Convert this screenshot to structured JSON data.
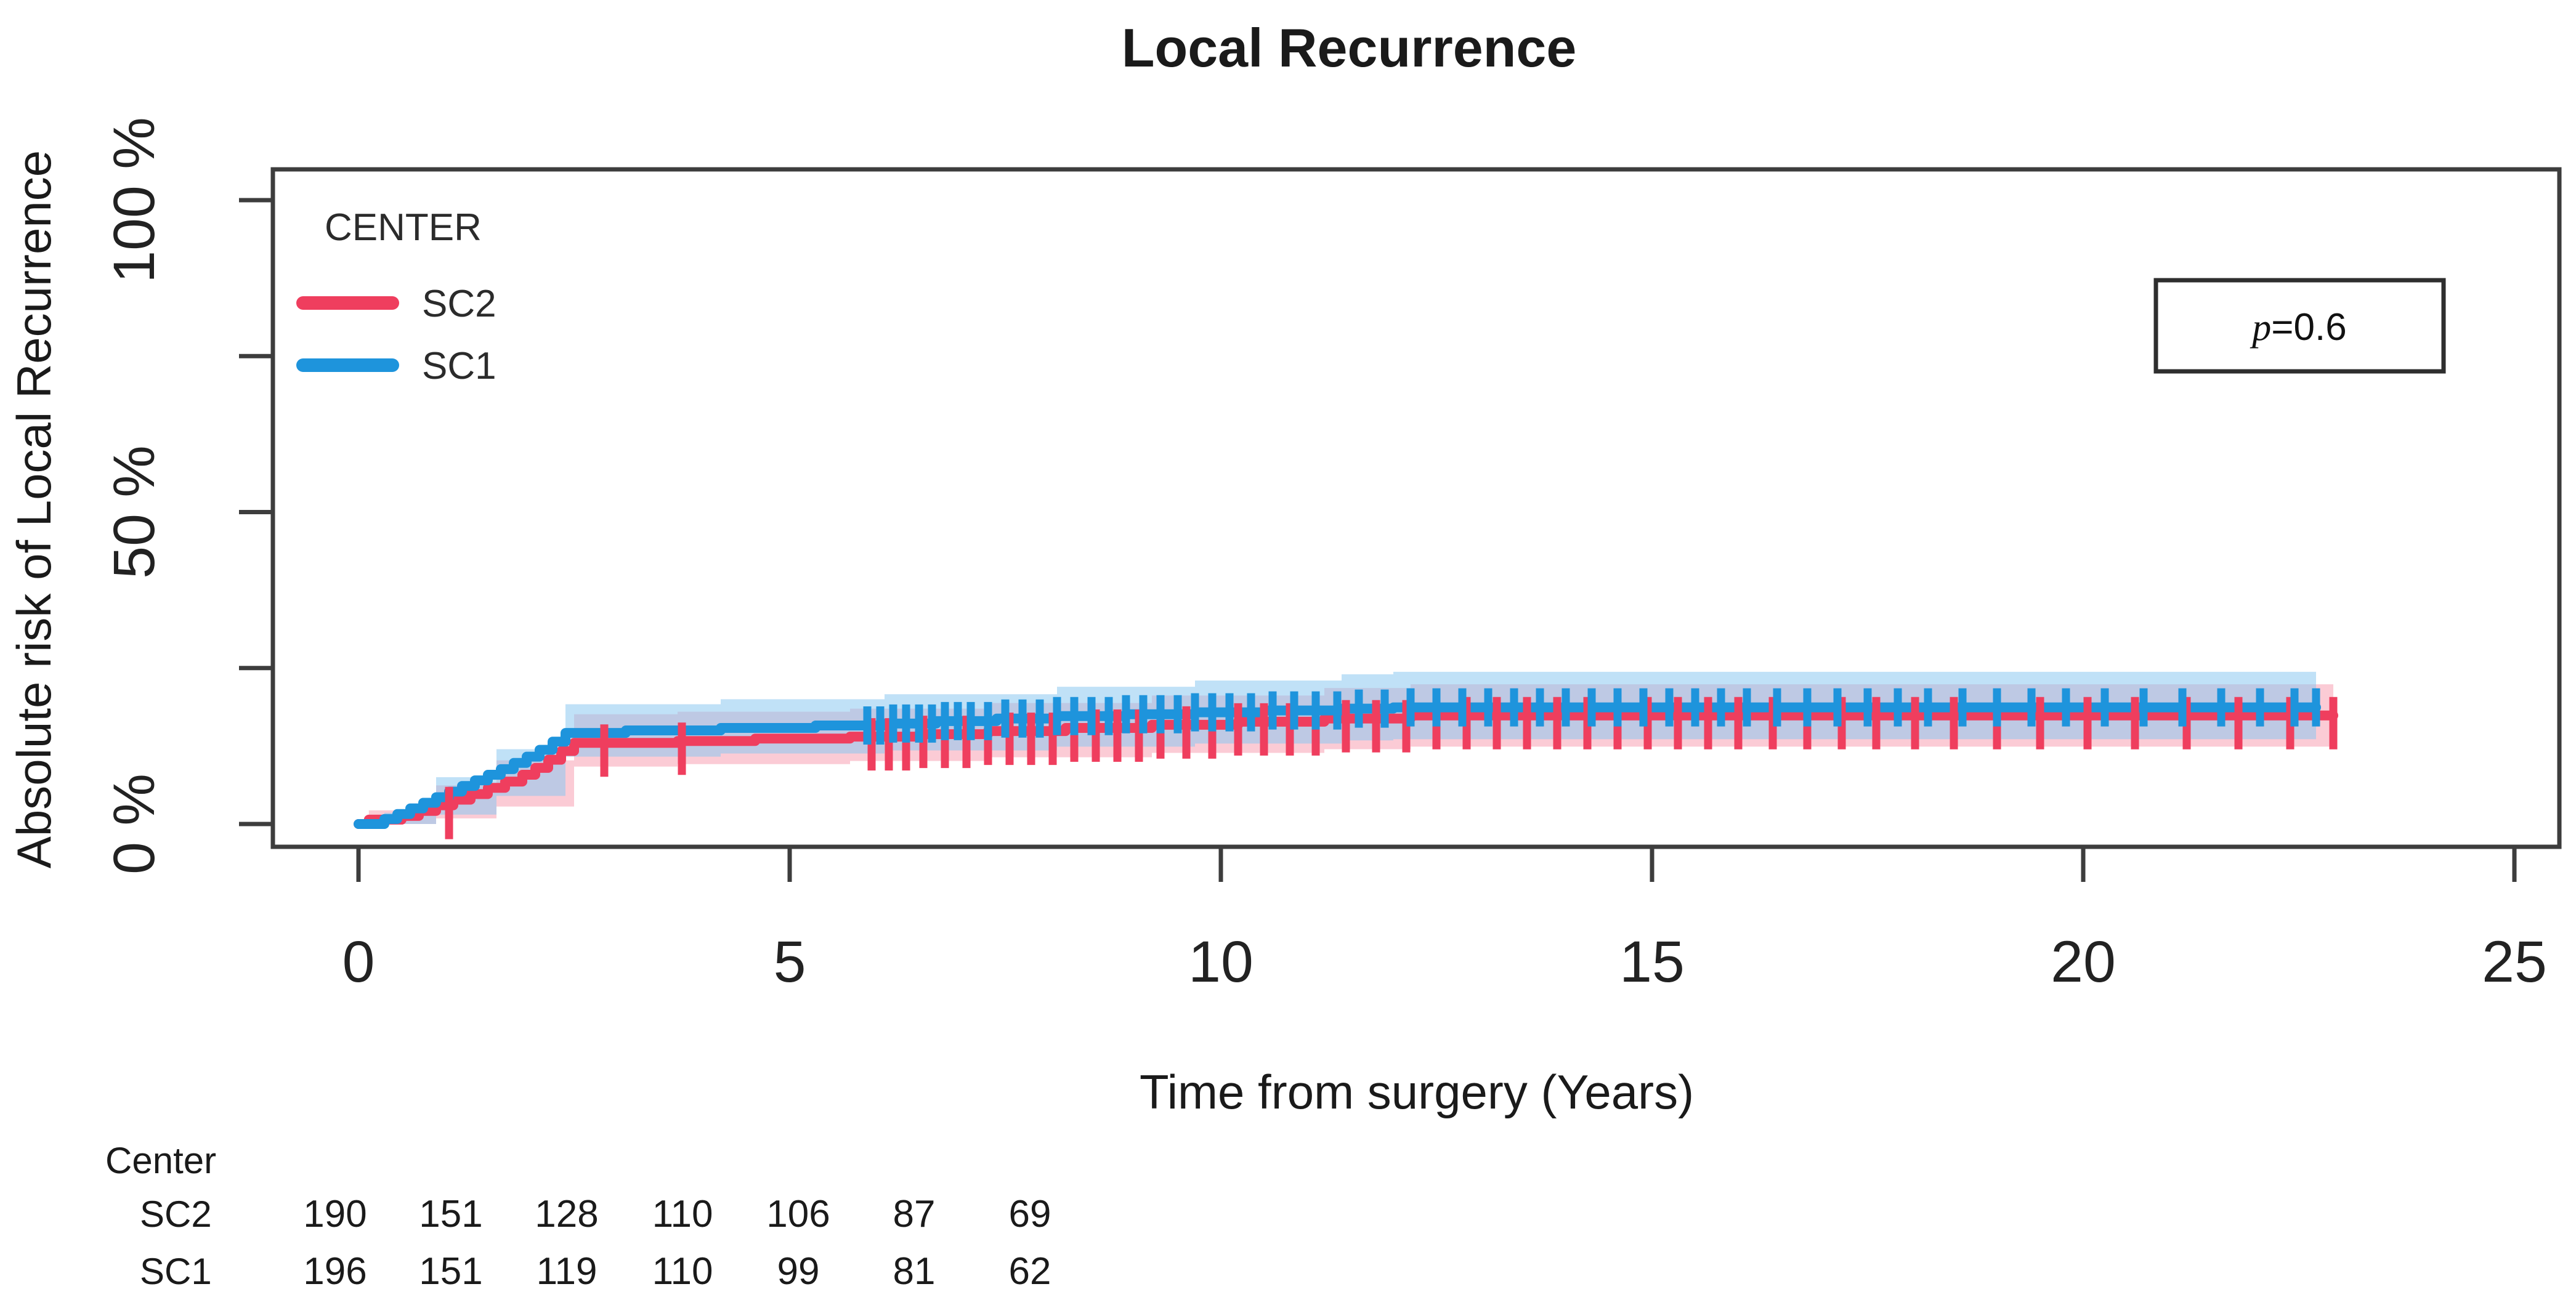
{
  "title": "Local Recurrence",
  "x_axis": {
    "title": "Time from surgery (Years)",
    "range": [
      0,
      25
    ],
    "ticks": [
      0,
      5,
      10,
      15,
      20,
      25
    ]
  },
  "y_axis": {
    "title": "Absolute risk of Local Recurrence",
    "range": [
      0,
      100
    ],
    "minor_ticks": [
      25,
      75
    ],
    "labeled_ticks": [
      {
        "value": 0,
        "label": "0 %"
      },
      {
        "value": 50,
        "label": "50 %"
      },
      {
        "value": 100,
        "label": "100 %"
      }
    ]
  },
  "legend": {
    "title": "CENTER",
    "items": [
      {
        "label": "SC2",
        "color": "#EF3E5E"
      },
      {
        "label": "SC1",
        "color": "#1E94DC"
      }
    ]
  },
  "annotation": {
    "p": "p",
    "rest": "=0.6"
  },
  "risk_table": {
    "header": "Center",
    "rows": [
      {
        "label": "SC2",
        "color": "#F4718B",
        "values": [
          190,
          151,
          128,
          110,
          106,
          87,
          69
        ]
      },
      {
        "label": "SC1",
        "color": "#2BA9E2",
        "values": [
          196,
          151,
          119,
          110,
          99,
          81,
          62
        ]
      }
    ]
  },
  "chart_data": {
    "type": "line",
    "subtype": "step-cumulative-incidence",
    "xlabel": "Time from surgery (Years)",
    "ylabel": "Absolute risk of Local Recurrence",
    "xlim": [
      0,
      25
    ],
    "ylim": [
      0,
      100
    ],
    "p_value": "p=0.6",
    "series": [
      {
        "name": "SC2",
        "color": "#EF3E5E",
        "band_color": "rgba(248,152,172,0.50)",
        "steps": [
          [
            0,
            0
          ],
          [
            0.12,
            0.7
          ],
          [
            0.5,
            1.3
          ],
          [
            0.7,
            2.1
          ],
          [
            0.9,
            3.0
          ],
          [
            1.1,
            3.9
          ],
          [
            1.3,
            4.8
          ],
          [
            1.5,
            5.8
          ],
          [
            1.7,
            6.8
          ],
          [
            1.9,
            7.9
          ],
          [
            2.05,
            9.0
          ],
          [
            2.2,
            10.3
          ],
          [
            2.35,
            11.7
          ],
          [
            2.5,
            13.0
          ],
          [
            3.7,
            13.3
          ],
          [
            4.6,
            13.7
          ],
          [
            5.7,
            14.0
          ],
          [
            6.5,
            14.4
          ],
          [
            7.3,
            14.9
          ],
          [
            8.2,
            15.4
          ],
          [
            9.2,
            15.9
          ],
          [
            10.2,
            16.4
          ],
          [
            11.2,
            16.9
          ],
          [
            12.2,
            17.4
          ],
          [
            22.9,
            17.4
          ]
        ],
        "band": [
          [
            0.12,
            0,
            2.2
          ],
          [
            0.9,
            0.9,
            6.2
          ],
          [
            1.6,
            2.8,
            10.2
          ],
          [
            2.5,
            9.2,
            17.6
          ],
          [
            3.7,
            9.6,
            18.0
          ],
          [
            5.7,
            10.1,
            18.5
          ],
          [
            7.3,
            10.7,
            19.4
          ],
          [
            9.2,
            11.4,
            20.6
          ],
          [
            11.2,
            12.0,
            21.8
          ],
          [
            12.2,
            12.4,
            22.4
          ],
          [
            22.9,
            12.4,
            22.4
          ]
        ],
        "censor_times": [
          1.05,
          2.85,
          3.75,
          5.95,
          6.15,
          6.35,
          6.55,
          6.8,
          7.05,
          7.3,
          7.55,
          7.8,
          8.05,
          8.3,
          8.55,
          8.8,
          9.05,
          9.3,
          9.6,
          9.9,
          10.2,
          10.5,
          10.8,
          11.1,
          11.45,
          11.8,
          12.15,
          12.5,
          12.85,
          13.2,
          13.55,
          13.9,
          14.25,
          14.6,
          14.95,
          15.3,
          15.65,
          16.0,
          16.4,
          16.8,
          17.2,
          17.6,
          18.05,
          18.5,
          19.0,
          19.5,
          20.05,
          20.6,
          21.2,
          21.8,
          22.4,
          22.9
        ]
      },
      {
        "name": "SC1",
        "color": "#1E94DC",
        "band_color": "rgba(140,200,240,0.55)",
        "steps": [
          [
            0,
            0
          ],
          [
            0.3,
            0.8
          ],
          [
            0.45,
            1.6
          ],
          [
            0.6,
            2.5
          ],
          [
            0.75,
            3.4
          ],
          [
            0.9,
            4.3
          ],
          [
            1.05,
            5.2
          ],
          [
            1.2,
            6.1
          ],
          [
            1.35,
            7.0
          ],
          [
            1.5,
            7.9
          ],
          [
            1.65,
            8.8
          ],
          [
            1.8,
            9.8
          ],
          [
            1.95,
            10.8
          ],
          [
            2.1,
            11.9
          ],
          [
            2.25,
            13.2
          ],
          [
            2.4,
            14.6
          ],
          [
            3.1,
            15.0
          ],
          [
            4.2,
            15.4
          ],
          [
            5.3,
            15.8
          ],
          [
            6.1,
            16.1
          ],
          [
            6.7,
            16.5
          ],
          [
            7.4,
            16.9
          ],
          [
            8.1,
            17.3
          ],
          [
            8.9,
            17.6
          ],
          [
            9.7,
            17.9
          ],
          [
            10.5,
            18.2
          ],
          [
            11.4,
            18.5
          ],
          [
            12.0,
            18.7
          ],
          [
            22.7,
            18.7
          ]
        ],
        "band": [
          [
            0.3,
            0,
            1.8
          ],
          [
            0.9,
            1.5,
            7.5
          ],
          [
            1.6,
            4.5,
            12.0
          ],
          [
            2.4,
            10.8,
            19.2
          ],
          [
            4.2,
            11.3,
            20.0
          ],
          [
            6.1,
            11.8,
            20.8
          ],
          [
            8.1,
            12.4,
            22.0
          ],
          [
            9.7,
            12.9,
            23.0
          ],
          [
            11.4,
            13.4,
            24.0
          ],
          [
            12.0,
            13.6,
            24.4
          ],
          [
            22.7,
            13.6,
            24.4
          ]
        ],
        "censor_times": [
          5.9,
          6.05,
          6.2,
          6.35,
          6.5,
          6.65,
          6.8,
          6.95,
          7.1,
          7.3,
          7.5,
          7.7,
          7.9,
          8.1,
          8.3,
          8.5,
          8.7,
          8.9,
          9.1,
          9.3,
          9.5,
          9.7,
          9.9,
          10.1,
          10.35,
          10.6,
          10.85,
          11.1,
          11.35,
          11.6,
          11.9,
          12.2,
          12.5,
          12.8,
          13.1,
          13.4,
          13.7,
          14.0,
          14.3,
          14.6,
          14.9,
          15.2,
          15.5,
          15.8,
          16.1,
          16.45,
          16.8,
          17.15,
          17.5,
          17.85,
          18.2,
          18.6,
          19.0,
          19.4,
          19.8,
          20.25,
          20.7,
          21.15,
          21.6,
          22.05,
          22.45,
          22.7
        ]
      }
    ],
    "risk_table": {
      "header": "Center",
      "rows": [
        {
          "name": "SC2",
          "values": [
            190,
            151,
            128,
            110,
            106,
            87,
            69
          ]
        },
        {
          "name": "SC1",
          "values": [
            196,
            151,
            119,
            110,
            99,
            81,
            62
          ]
        }
      ]
    }
  }
}
